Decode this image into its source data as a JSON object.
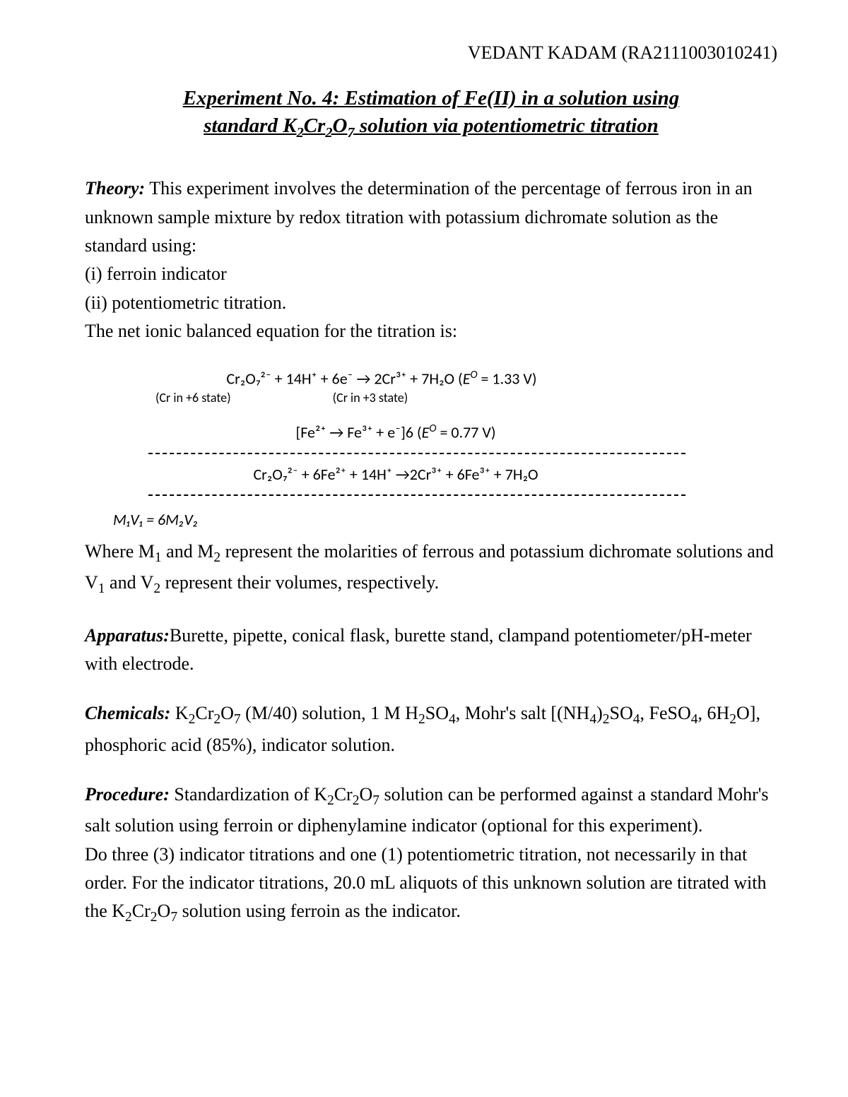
{
  "header": {
    "student_name": "VEDANT KADAM (RA2111003010241)"
  },
  "title": {
    "line1": "Experiment No. 4: Estimation of Fe(II) in a solution using",
    "line2_prefix": "standard K",
    "line2_sub1": "2",
    "line2_mid": "Cr",
    "line2_sub2": "2",
    "line2_mid2": "O",
    "line2_sub3": "7",
    "line2_suffix": " solution via potentiometric titration"
  },
  "theory": {
    "label": "Theory:",
    "para1": " This experiment involves the determination of the percentage of ferrous iron in an unknown sample mixture by redox titration with potassium dichromate solution as the standard using:",
    "item_i": "(i) ferroin indicator",
    "item_ii": "(ii) potentiometric titration.",
    "para2": "The net ionic balanced equation for the titration is:"
  },
  "equations": {
    "eq1_part1": "Cr₂O₇²⁻ + 14H⁺ + 6e⁻ → 2Cr³⁺ + 7H₂O",
    "eq1_part2": "   (",
    "eq1_E": "E",
    "eq1_O": "O",
    "eq1_val": " = 1.33 V)",
    "state_left": "(Cr in +6 state)",
    "state_right": "(Cr in +3 state)",
    "eq2_part1": "[Fe²⁺ → Fe³⁺ + e⁻]6",
    "eq2_part2": "   (",
    "eq2_E": "E",
    "eq2_O": "O",
    "eq2_val": " = 0.77 V)",
    "eq3": "Cr₂O₇²⁻ + 6Fe²⁺ + 14H⁺ →2Cr³⁺ + 6Fe³⁺ + 7H₂O",
    "mv": "M₁V₁ = 6M₂V₂"
  },
  "where": {
    "text_p1": "Where M",
    "sub1": "1",
    "text_p2": " and M",
    "sub2": "2",
    "text_p3": " represent the molarities of ferrous and potassium dichromate solutions and V",
    "sub3": "1",
    "text_p4": " and V",
    "sub4": "2",
    "text_p5": " represent their volumes, respectively."
  },
  "apparatus": {
    "label": "Apparatus:",
    "text": "Burette, pipette, conical flask, burette stand, clampand potentiometer/pH-meter with electrode."
  },
  "chemicals": {
    "label": "Chemicals:",
    "t1": " K",
    "s1": "2",
    "t2": "Cr",
    "s2": "2",
    "t3": "O",
    "s3": "7",
    "t4": " (M/40) solution, 1 M H",
    "s4": "2",
    "t5": "SO",
    "s5": "4",
    "t6": ", Mohr's salt [(NH",
    "s6": "4",
    "t7": ")",
    "s7": "2",
    "t8": "SO",
    "s8": "4",
    "t9": ", FeSO",
    "s9": "4",
    "t10": ", 6H",
    "s10": "2",
    "t11": "O], phosphoric acid (85%), indicator solution."
  },
  "procedure": {
    "label": "Procedure:",
    "p1a": " Standardization of K",
    "p1s1": "2",
    "p1b": "Cr",
    "p1s2": "2",
    "p1c": "O",
    "p1s3": "7",
    "p1d": " solution can be performed against a standard Mohr's salt solution using ferroin or diphenylamine indicator (optional for this experiment).",
    "p2a": "Do three (3) indicator titrations and one (1) potentiometric titration, not necessarily in that order. For the indicator titrations, 20.0 mL aliquots of this unknown solution are titrated with the K",
    "p2s1": "2",
    "p2b": "Cr",
    "p2s2": "2",
    "p2c": "O",
    "p2s3": "7",
    "p2d": " solution using ferroin as the indicator."
  }
}
